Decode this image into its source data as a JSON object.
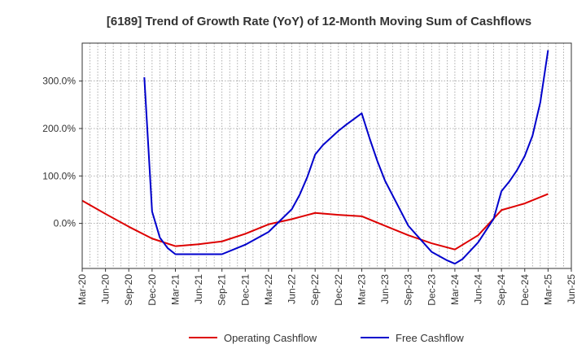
{
  "chart_data": {
    "type": "line",
    "title": "[6189]  Trend of Growth Rate (YoY) of 12-Month Moving Sum of Cashflows",
    "xlabel": "",
    "ylabel": "",
    "x_tick_labels": [
      "Mar-20",
      "Jun-20",
      "Sep-20",
      "Dec-20",
      "Mar-21",
      "Jun-21",
      "Sep-21",
      "Dec-21",
      "Mar-22",
      "Jun-22",
      "Sep-22",
      "Dec-22",
      "Mar-23",
      "Jun-23",
      "Sep-23",
      "Dec-23",
      "Mar-24",
      "Jun-24",
      "Sep-24",
      "Dec-24",
      "Mar-25",
      "Jun-25"
    ],
    "y_ticks": [
      0,
      100,
      200,
      300
    ],
    "y_tick_labels": [
      "0.0%",
      "100.0%",
      "200.0%",
      "300.0%"
    ],
    "ylim": [
      -95,
      380
    ],
    "grid": true,
    "legend_position": "bottom",
    "series": [
      {
        "name": "Operating Cashflow",
        "color": "#dd0000",
        "points": [
          [
            "Mar-20",
            48
          ],
          [
            "Jun-20",
            20
          ],
          [
            "Sep-20",
            -7
          ],
          [
            "Dec-20",
            -32
          ],
          [
            "Mar-21",
            -48
          ],
          [
            "Jun-21",
            -44
          ],
          [
            "Sep-21",
            -38
          ],
          [
            "Dec-21",
            -22
          ],
          [
            "Mar-22",
            -2
          ],
          [
            "Jun-22",
            9
          ],
          [
            "Sep-22",
            22
          ],
          [
            "Dec-22",
            18
          ],
          [
            "Mar-23",
            15
          ],
          [
            "Jun-23",
            -5
          ],
          [
            "Sep-23",
            -25
          ],
          [
            "Dec-23",
            -42
          ],
          [
            "Mar-24",
            -55
          ],
          [
            "Jun-24",
            -25
          ],
          [
            "Sep-24",
            28
          ],
          [
            "Dec-24",
            42
          ],
          [
            "Mar-25",
            62
          ]
        ]
      },
      {
        "name": "Free Cashflow",
        "color": "#0000cc",
        "points": [
          [
            "Nov-20",
            308
          ],
          [
            "Dec-20",
            25
          ],
          [
            "Jan-21",
            -30
          ],
          [
            "Feb-21",
            -52
          ],
          [
            "Mar-21",
            -65
          ],
          [
            "Jun-21",
            -65
          ],
          [
            "Sep-21",
            -65
          ],
          [
            "Dec-21",
            -45
          ],
          [
            "Mar-22",
            -18
          ],
          [
            "Jun-22",
            30
          ],
          [
            "Jul-22",
            60
          ],
          [
            "Aug-22",
            98
          ],
          [
            "Sep-22",
            145
          ],
          [
            "Oct-22",
            165
          ],
          [
            "Dec-22",
            195
          ],
          [
            "Jan-23",
            208
          ],
          [
            "Mar-23",
            232
          ],
          [
            "Apr-23",
            180
          ],
          [
            "May-23",
            132
          ],
          [
            "Jun-23",
            90
          ],
          [
            "Sep-23",
            -5
          ],
          [
            "Dec-23",
            -60
          ],
          [
            "Feb-24",
            -78
          ],
          [
            "Mar-24",
            -85
          ],
          [
            "Apr-24",
            -75
          ],
          [
            "Jun-24",
            -40
          ],
          [
            "Aug-24",
            10
          ],
          [
            "Sep-24",
            68
          ],
          [
            "Oct-24",
            88
          ],
          [
            "Nov-24",
            112
          ],
          [
            "Dec-24",
            142
          ],
          [
            "Jan-25",
            185
          ],
          [
            "Feb-25",
            255
          ],
          [
            "Mar-25",
            365
          ]
        ]
      }
    ]
  }
}
